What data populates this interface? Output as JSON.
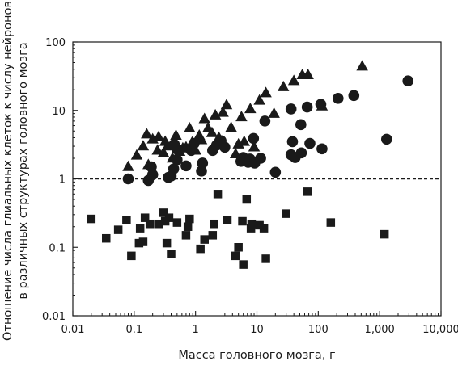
{
  "chart_data": {
    "type": "scatter",
    "title": "",
    "xlabel": "Масса головного мозга, г",
    "ylabel": [
      "Отношение числа глиальных клеток к числу нейронов",
      "в различных структурах головного мозга"
    ],
    "xscale": "log",
    "yscale": "log",
    "xlim": [
      0.01,
      10000
    ],
    "ylim": [
      0.01,
      100
    ],
    "x_ticks": [
      {
        "value": 0.01,
        "label": "0.01"
      },
      {
        "value": 0.1,
        "label": "0.1"
      },
      {
        "value": 1,
        "label": "1"
      },
      {
        "value": 10,
        "label": "10"
      },
      {
        "value": 100,
        "label": "100"
      },
      {
        "value": 1000,
        "label": "1,000"
      },
      {
        "value": 10000,
        "label": "10,000"
      }
    ],
    "y_ticks": [
      {
        "value": 0.01,
        "label": "0.01"
      },
      {
        "value": 0.1,
        "label": "0.1"
      },
      {
        "value": 1,
        "label": "1"
      },
      {
        "value": 10,
        "label": "10"
      },
      {
        "value": 100,
        "label": "100"
      }
    ],
    "reference_line": {
      "y": 1,
      "style": "dashed"
    },
    "grid": false,
    "marker_color": "#1a1a1a",
    "series": [
      {
        "marker": "triangle",
        "points": [
          [
            0.08,
            1.5
          ],
          [
            0.11,
            2.2
          ],
          [
            0.14,
            3.0
          ],
          [
            0.16,
            4.5
          ],
          [
            0.17,
            1.6
          ],
          [
            0.2,
            3.8
          ],
          [
            0.24,
            2.6
          ],
          [
            0.25,
            4.1
          ],
          [
            0.3,
            2.4
          ],
          [
            0.32,
            3.5
          ],
          [
            0.35,
            3.0
          ],
          [
            0.42,
            2.0
          ],
          [
            0.48,
            4.3
          ],
          [
            0.55,
            2.5
          ],
          [
            0.62,
            2.8
          ],
          [
            0.7,
            2.9
          ],
          [
            0.8,
            5.5
          ],
          [
            0.88,
            3.4
          ],
          [
            1.0,
            2.6
          ],
          [
            1.15,
            4.3
          ],
          [
            1.25,
            3.7
          ],
          [
            1.4,
            7.5
          ],
          [
            1.6,
            5.5
          ],
          [
            1.85,
            4.7
          ],
          [
            2.1,
            8.5
          ],
          [
            2.4,
            4.0
          ],
          [
            2.8,
            9.3
          ],
          [
            3.2,
            12.0
          ],
          [
            3.8,
            5.6
          ],
          [
            4.5,
            2.3
          ],
          [
            5.0,
            3.2
          ],
          [
            5.6,
            8.0
          ],
          [
            6.2,
            3.5
          ],
          [
            7.8,
            10.5
          ],
          [
            9.0,
            2.9
          ],
          [
            11.0,
            14.0
          ],
          [
            14.0,
            18.0
          ],
          [
            19.0,
            9.0
          ],
          [
            27.0,
            22.0
          ],
          [
            40.0,
            27.0
          ],
          [
            55.0,
            33.0
          ],
          [
            68.0,
            33.0
          ],
          [
            115.0,
            11.5
          ],
          [
            520.0,
            44.0
          ]
        ]
      },
      {
        "marker": "circle",
        "points": [
          [
            0.08,
            1.0
          ],
          [
            0.17,
            0.95
          ],
          [
            0.2,
            1.15
          ],
          [
            0.19,
            1.5
          ],
          [
            0.36,
            1.05
          ],
          [
            0.4,
            1.1
          ],
          [
            0.44,
            1.4
          ],
          [
            0.5,
            2.7
          ],
          [
            0.45,
            3.2
          ],
          [
            0.5,
            1.9
          ],
          [
            0.7,
            1.55
          ],
          [
            0.85,
            2.6
          ],
          [
            0.95,
            3.3
          ],
          [
            1.3,
            1.7
          ],
          [
            1.25,
            1.3
          ],
          [
            1.9,
            2.6
          ],
          [
            2.2,
            3.1
          ],
          [
            2.6,
            3.6
          ],
          [
            3.0,
            2.9
          ],
          [
            5.5,
            1.8
          ],
          [
            6.0,
            2.05
          ],
          [
            7.2,
            1.75
          ],
          [
            7.7,
            1.95
          ],
          [
            8.8,
            3.9
          ],
          [
            9.2,
            1.7
          ],
          [
            11.5,
            2.0
          ],
          [
            13.5,
            7.0
          ],
          [
            20.0,
            1.25
          ],
          [
            36.0,
            2.25
          ],
          [
            36.0,
            10.5
          ],
          [
            38.0,
            3.5
          ],
          [
            42.0,
            2.05
          ],
          [
            52.0,
            6.2
          ],
          [
            53.0,
            2.4
          ],
          [
            66.0,
            11.2
          ],
          [
            73.0,
            3.3
          ],
          [
            110.0,
            12.3
          ],
          [
            115.0,
            2.75
          ],
          [
            210.0,
            15.0
          ],
          [
            380.0,
            16.5
          ],
          [
            1300.0,
            3.8
          ],
          [
            2900.0,
            27.0
          ]
        ]
      },
      {
        "marker": "square",
        "points": [
          [
            0.02,
            0.26
          ],
          [
            0.035,
            0.135
          ],
          [
            0.055,
            0.18
          ],
          [
            0.075,
            0.25
          ],
          [
            0.09,
            0.075
          ],
          [
            0.12,
            0.115
          ],
          [
            0.125,
            0.19
          ],
          [
            0.14,
            0.12
          ],
          [
            0.15,
            0.27
          ],
          [
            0.18,
            0.22
          ],
          [
            0.25,
            0.22
          ],
          [
            0.3,
            0.32
          ],
          [
            0.32,
            0.24
          ],
          [
            0.34,
            0.115
          ],
          [
            0.37,
            0.27
          ],
          [
            0.4,
            0.08
          ],
          [
            0.5,
            0.23
          ],
          [
            0.7,
            0.15
          ],
          [
            0.75,
            0.2
          ],
          [
            0.8,
            0.26
          ],
          [
            1.2,
            0.095
          ],
          [
            1.4,
            0.13
          ],
          [
            1.9,
            0.15
          ],
          [
            2.0,
            0.22
          ],
          [
            2.3,
            0.6
          ],
          [
            3.3,
            0.25
          ],
          [
            4.5,
            0.075
          ],
          [
            5.0,
            0.1
          ],
          [
            5.8,
            0.24
          ],
          [
            6.0,
            0.056
          ],
          [
            6.8,
            0.5
          ],
          [
            8.0,
            0.19
          ],
          [
            8.2,
            0.22
          ],
          [
            11.0,
            0.21
          ],
          [
            13.0,
            0.19
          ],
          [
            14.0,
            0.068
          ],
          [
            30.0,
            0.31
          ],
          [
            67.0,
            0.65
          ],
          [
            160.0,
            0.23
          ],
          [
            1200.0,
            0.155
          ]
        ]
      }
    ]
  }
}
